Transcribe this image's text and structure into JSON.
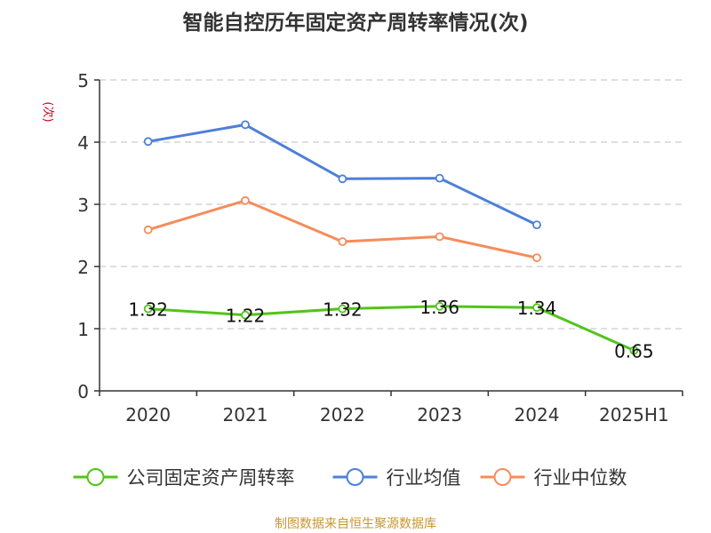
{
  "chart_data": {
    "type": "line",
    "title": "智能自控历年固定资产周转率情况(次)",
    "ylabel": "(次)",
    "xlabel": "",
    "categories": [
      "2020",
      "2021",
      "2022",
      "2023",
      "2024",
      "2025H1"
    ],
    "y_ticks": [
      "0",
      "1",
      "2",
      "3",
      "4",
      "5"
    ],
    "ylim": [
      0,
      5
    ],
    "grid": true,
    "legend_position": "bottom",
    "series": [
      {
        "name": "公司固定资产周转率",
        "color": "#52c41a",
        "values": [
          1.32,
          1.22,
          1.32,
          1.36,
          1.34,
          0.65
        ],
        "labels": [
          "1.32",
          "1.22",
          "1.32",
          "1.36",
          "1.34",
          "0.65"
        ]
      },
      {
        "name": "行业均值",
        "color": "#4e7fd8",
        "values": [
          4.01,
          4.28,
          3.41,
          3.42,
          2.67,
          null
        ],
        "labels": []
      },
      {
        "name": "行业中位数",
        "color": "#f58c5b",
        "values": [
          2.59,
          3.06,
          2.4,
          2.48,
          2.14,
          null
        ],
        "labels": []
      }
    ]
  },
  "source": "制图数据来自恒生聚源数据库",
  "colors": {
    "axis": "#333333",
    "grid": "#cccccc",
    "ylabel": "#d0021b",
    "source": "#c8962e"
  }
}
